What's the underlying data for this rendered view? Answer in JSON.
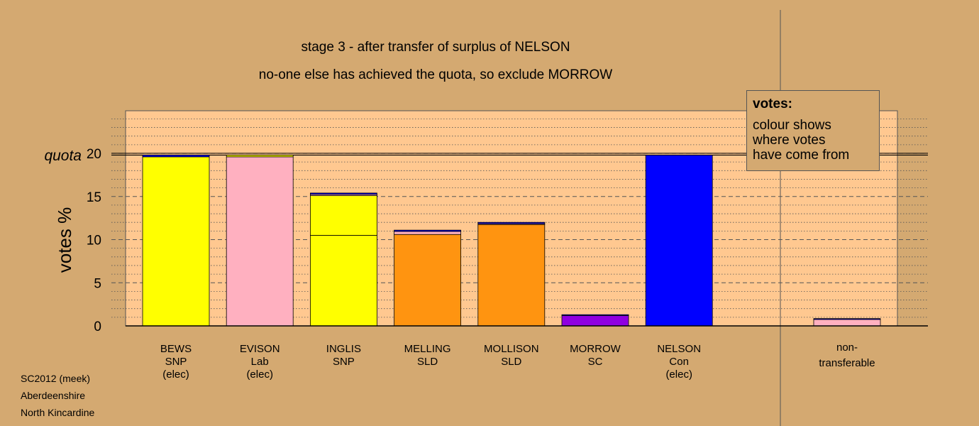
{
  "chart_data": {
    "type": "bar",
    "stacked": true,
    "title": "stage 3 - after transfer of surplus of NELSON",
    "subtitle": "no-one else has achieved the quota, so exclude MORROW",
    "ylabel": "votes %",
    "ylim": [
      0,
      24
    ],
    "yticks": [
      0,
      5,
      10,
      15,
      20
    ],
    "quota": 19.8,
    "quota_label": "quota",
    "grid": true,
    "colors": {
      "SNP": "#ffff00",
      "Lab": "#ffb0c0",
      "SLD": "#ff9410",
      "SC": "#9000e0",
      "Con": "#0000ff",
      "BEWS": "#ffff00",
      "INGLIS": "#ffff00",
      "MELLING": "#ff9410",
      "MOLLISON": "#ff9410",
      "MORROW": "#9000e0",
      "NELSON": "#0000ff",
      "EVISON": "#ffb0c0",
      "plot_bg": "#ffc890"
    },
    "candidates": [
      {
        "name": "BEWS",
        "party": "SNP",
        "status": "(elec)",
        "segments": [
          {
            "from": "BEWS",
            "value": 19.6
          },
          {
            "from": "NELSON",
            "value": 0.2
          }
        ]
      },
      {
        "name": "EVISON",
        "party": "Lab",
        "status": "(elec)",
        "segments": [
          {
            "from": "EVISON",
            "value": 19.6
          },
          {
            "from": "INGLIS",
            "value": 0.2
          }
        ]
      },
      {
        "name": "INGLIS",
        "party": "SNP",
        "status": "",
        "segments": [
          {
            "from": "INGLIS",
            "value": 10.5
          },
          {
            "from": "BEWS",
            "value": 4.6
          },
          {
            "from": "EVISON",
            "value": 0.15
          },
          {
            "from": "NELSON",
            "value": 0.15
          }
        ]
      },
      {
        "name": "MELLING",
        "party": "SLD",
        "status": "",
        "segments": [
          {
            "from": "MELLING",
            "value": 10.6
          },
          {
            "from": "EVISON",
            "value": 0.35
          },
          {
            "from": "NELSON",
            "value": 0.15
          }
        ]
      },
      {
        "name": "MOLLISON",
        "party": "SLD",
        "status": "",
        "segments": [
          {
            "from": "MOLLISON",
            "value": 11.75
          },
          {
            "from": "EVISON",
            "value": 0.1
          },
          {
            "from": "NELSON",
            "value": 0.15
          }
        ]
      },
      {
        "name": "MORROW",
        "party": "SC",
        "status": "",
        "segments": [
          {
            "from": "MORROW",
            "value": 1.2
          },
          {
            "from": "NELSON",
            "value": 0.1
          }
        ]
      },
      {
        "name": "NELSON",
        "party": "Con",
        "status": "(elec)",
        "segments": [
          {
            "from": "NELSON",
            "value": 19.8
          }
        ]
      }
    ],
    "non_transferable": {
      "label": [
        "non-",
        "transferable"
      ],
      "segments": [
        {
          "from": "EVISON",
          "value": 0.75
        },
        {
          "from": "NELSON",
          "value": 0.1
        }
      ]
    }
  },
  "legend": {
    "title": "votes:",
    "lines": [
      "colour shows",
      "where votes",
      "have come from"
    ]
  },
  "footer": {
    "line1": "SC2012 (meek)",
    "line2": "Aberdeenshire",
    "line3": "North Kincardine"
  }
}
